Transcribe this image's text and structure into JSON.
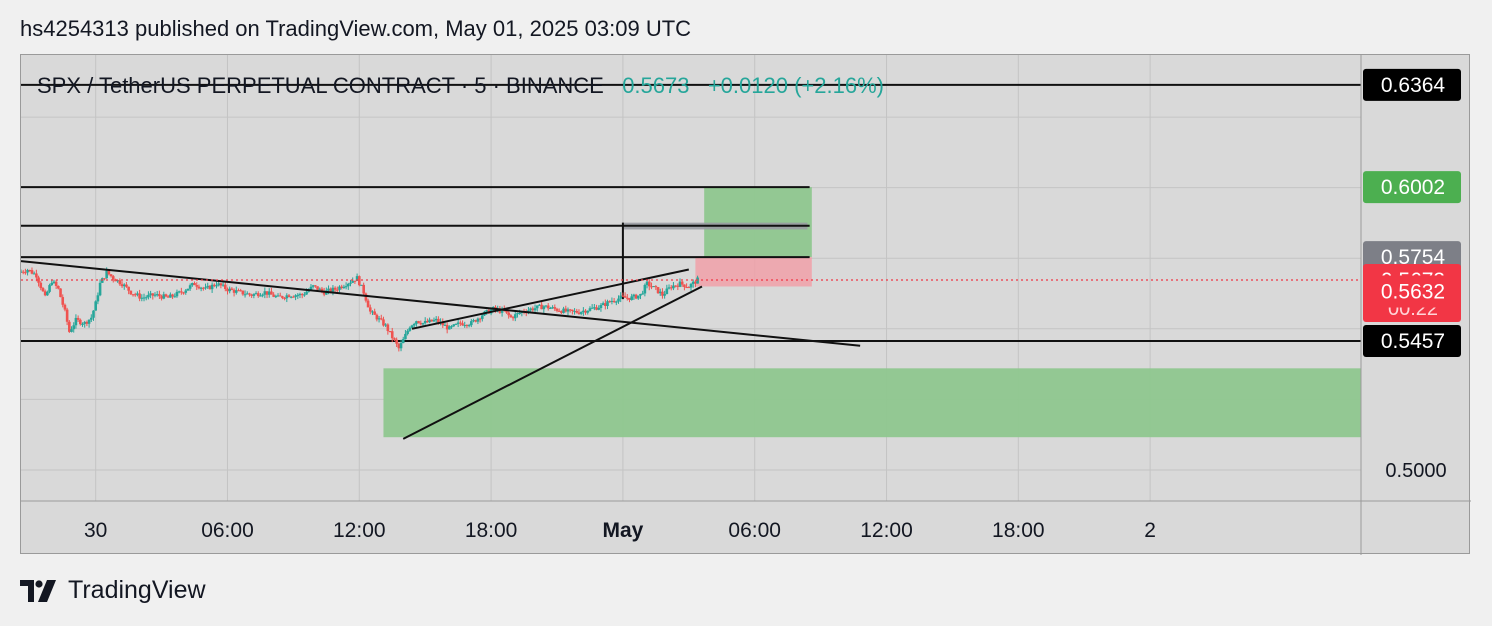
{
  "header": {
    "published_text": "hs4254313 published on TradingView.com, May 01, 2025 03:09 UTC"
  },
  "legend": {
    "symbol": "SPX / TetherUS PERPETUAL CONTRACT · 5 · BINANCE",
    "price": "0.5673",
    "change": "+0.0120 (+2.16%)"
  },
  "footer": {
    "brand": "TradingView"
  },
  "colors": {
    "up": "#26a69a",
    "down": "#ef5350",
    "zone_green": "#8fc78f",
    "zone_red": "#f0a0a8",
    "current_badge": "#f23645",
    "green_badge": "#4caf50",
    "gray_badge": "#7d7f87"
  },
  "chart_data": {
    "type": "candlestick",
    "y_axis": {
      "range": [
        0.489,
        0.647
      ],
      "ticks": [
        "0.5000"
      ],
      "badges": [
        {
          "label": "0.6364",
          "value": 0.6364,
          "style": "black"
        },
        {
          "label": "0.6002",
          "value": 0.6002,
          "style": "green"
        },
        {
          "label": "0.5754",
          "value": 0.5754,
          "style": "gray"
        },
        {
          "label": "0.5673",
          "value": 0.5673,
          "style": "red",
          "extra": "00:22"
        },
        {
          "label": "0.5632",
          "value": 0.5632,
          "style": "red"
        },
        {
          "label": "0.5457",
          "value": 0.5457,
          "style": "black"
        }
      ]
    },
    "x_axis": {
      "range_hours": [
        -3.4,
        57.6
      ],
      "ticks": [
        {
          "label": "30",
          "hours": 0,
          "bold": false
        },
        {
          "label": "06:00",
          "hours": 6,
          "bold": false
        },
        {
          "label": "12:00",
          "hours": 12,
          "bold": false
        },
        {
          "label": "18:00",
          "hours": 18,
          "bold": false
        },
        {
          "label": "May",
          "hours": 24,
          "bold": true
        },
        {
          "label": "06:00",
          "hours": 30,
          "bold": false
        },
        {
          "label": "12:00",
          "hours": 36,
          "bold": false
        },
        {
          "label": "18:00",
          "hours": 42,
          "bold": false
        },
        {
          "label": "2",
          "hours": 48,
          "bold": false
        }
      ]
    },
    "price_path": [
      [
        -3.4,
        0.57
      ],
      [
        -3.0,
        0.571
      ],
      [
        -2.6,
        0.569
      ],
      [
        -2.2,
        0.561
      ],
      [
        -1.9,
        0.567
      ],
      [
        -1.6,
        0.564
      ],
      [
        -1.3,
        0.556
      ],
      [
        -1.1,
        0.549
      ],
      [
        -0.8,
        0.553
      ],
      [
        -0.4,
        0.552
      ],
      [
        -0.1,
        0.554
      ],
      [
        0.1,
        0.559
      ],
      [
        0.3,
        0.566
      ],
      [
        0.6,
        0.57
      ],
      [
        0.9,
        0.568
      ],
      [
        1.3,
        0.566
      ],
      [
        1.7,
        0.563
      ],
      [
        2.2,
        0.561
      ],
      [
        2.8,
        0.562
      ],
      [
        3.4,
        0.561
      ],
      [
        4.0,
        0.563
      ],
      [
        4.6,
        0.566
      ],
      [
        5.1,
        0.564
      ],
      [
        5.6,
        0.566
      ],
      [
        6.1,
        0.564
      ],
      [
        6.6,
        0.563
      ],
      [
        7.2,
        0.562
      ],
      [
        7.8,
        0.563
      ],
      [
        8.4,
        0.561
      ],
      [
        8.9,
        0.562
      ],
      [
        9.5,
        0.562
      ],
      [
        10.0,
        0.565
      ],
      [
        10.5,
        0.563
      ],
      [
        11.0,
        0.564
      ],
      [
        11.5,
        0.566
      ],
      [
        12.0,
        0.568
      ],
      [
        12.3,
        0.563
      ],
      [
        12.6,
        0.556
      ],
      [
        12.9,
        0.554
      ],
      [
        13.3,
        0.551
      ],
      [
        13.6,
        0.547
      ],
      [
        13.9,
        0.543
      ],
      [
        14.1,
        0.546
      ],
      [
        14.4,
        0.551
      ],
      [
        14.7,
        0.553
      ],
      [
        15.0,
        0.552
      ],
      [
        15.6,
        0.553
      ],
      [
        16.2,
        0.55
      ],
      [
        16.7,
        0.552
      ],
      [
        17.2,
        0.552
      ],
      [
        17.7,
        0.555
      ],
      [
        18.2,
        0.557
      ],
      [
        18.7,
        0.556
      ],
      [
        19.0,
        0.554
      ],
      [
        19.5,
        0.556
      ],
      [
        19.9,
        0.557
      ],
      [
        20.5,
        0.558
      ],
      [
        21.0,
        0.557
      ],
      [
        21.6,
        0.556
      ],
      [
        22.1,
        0.556
      ],
      [
        22.6,
        0.557
      ],
      [
        23.1,
        0.558
      ],
      [
        23.6,
        0.56
      ],
      [
        24.0,
        0.561
      ],
      [
        24.5,
        0.561
      ],
      [
        24.9,
        0.562
      ],
      [
        25.2,
        0.566
      ],
      [
        25.6,
        0.564
      ],
      [
        25.9,
        0.562
      ],
      [
        26.3,
        0.565
      ],
      [
        26.7,
        0.566
      ],
      [
        27.1,
        0.565
      ],
      [
        27.5,
        0.5673
      ]
    ],
    "range_bars_hours": [
      -3.4,
      27.5
    ],
    "horizontal_levels": [
      {
        "value": 0.6364,
        "from_hours": -3.4,
        "to_hours": 57.6
      },
      {
        "value": 0.6002,
        "from_hours": -3.4,
        "to_hours": 32.5
      },
      {
        "value": 0.5865,
        "from_hours": -3.4,
        "to_hours": 32.5
      },
      {
        "value": 0.5754,
        "from_hours": -3.4,
        "to_hours": 32.5
      },
      {
        "value": 0.5457,
        "from_hours": -3.4,
        "to_hours": 57.6
      }
    ],
    "trendlines": [
      {
        "from": [
          -3.4,
          0.574
        ],
        "to": [
          34.8,
          0.544
        ]
      },
      {
        "from": [
          14.4,
          0.55
        ],
        "to": [
          27.0,
          0.571
        ]
      },
      {
        "from": [
          14.0,
          0.511
        ],
        "to": [
          27.6,
          0.565
        ]
      }
    ],
    "vertical_marker": {
      "hours": 24.0,
      "from_value": 0.5876,
      "to_value": 0.5605
    },
    "gray_zone": {
      "from_hours": 24.0,
      "to_hours": 32.4,
      "low": 0.5852,
      "high": 0.5876
    },
    "zones": [
      {
        "type": "support",
        "from_hours": 13.1,
        "to_hours": 57.6,
        "low": 0.5116,
        "high": 0.536
      },
      {
        "type": "target",
        "from_hours": 27.7,
        "to_hours": 32.6,
        "low": 0.5754,
        "high": 0.6002
      },
      {
        "type": "stop",
        "from_hours": 27.3,
        "to_hours": 32.6,
        "low": 0.565,
        "high": 0.5754
      }
    ]
  }
}
